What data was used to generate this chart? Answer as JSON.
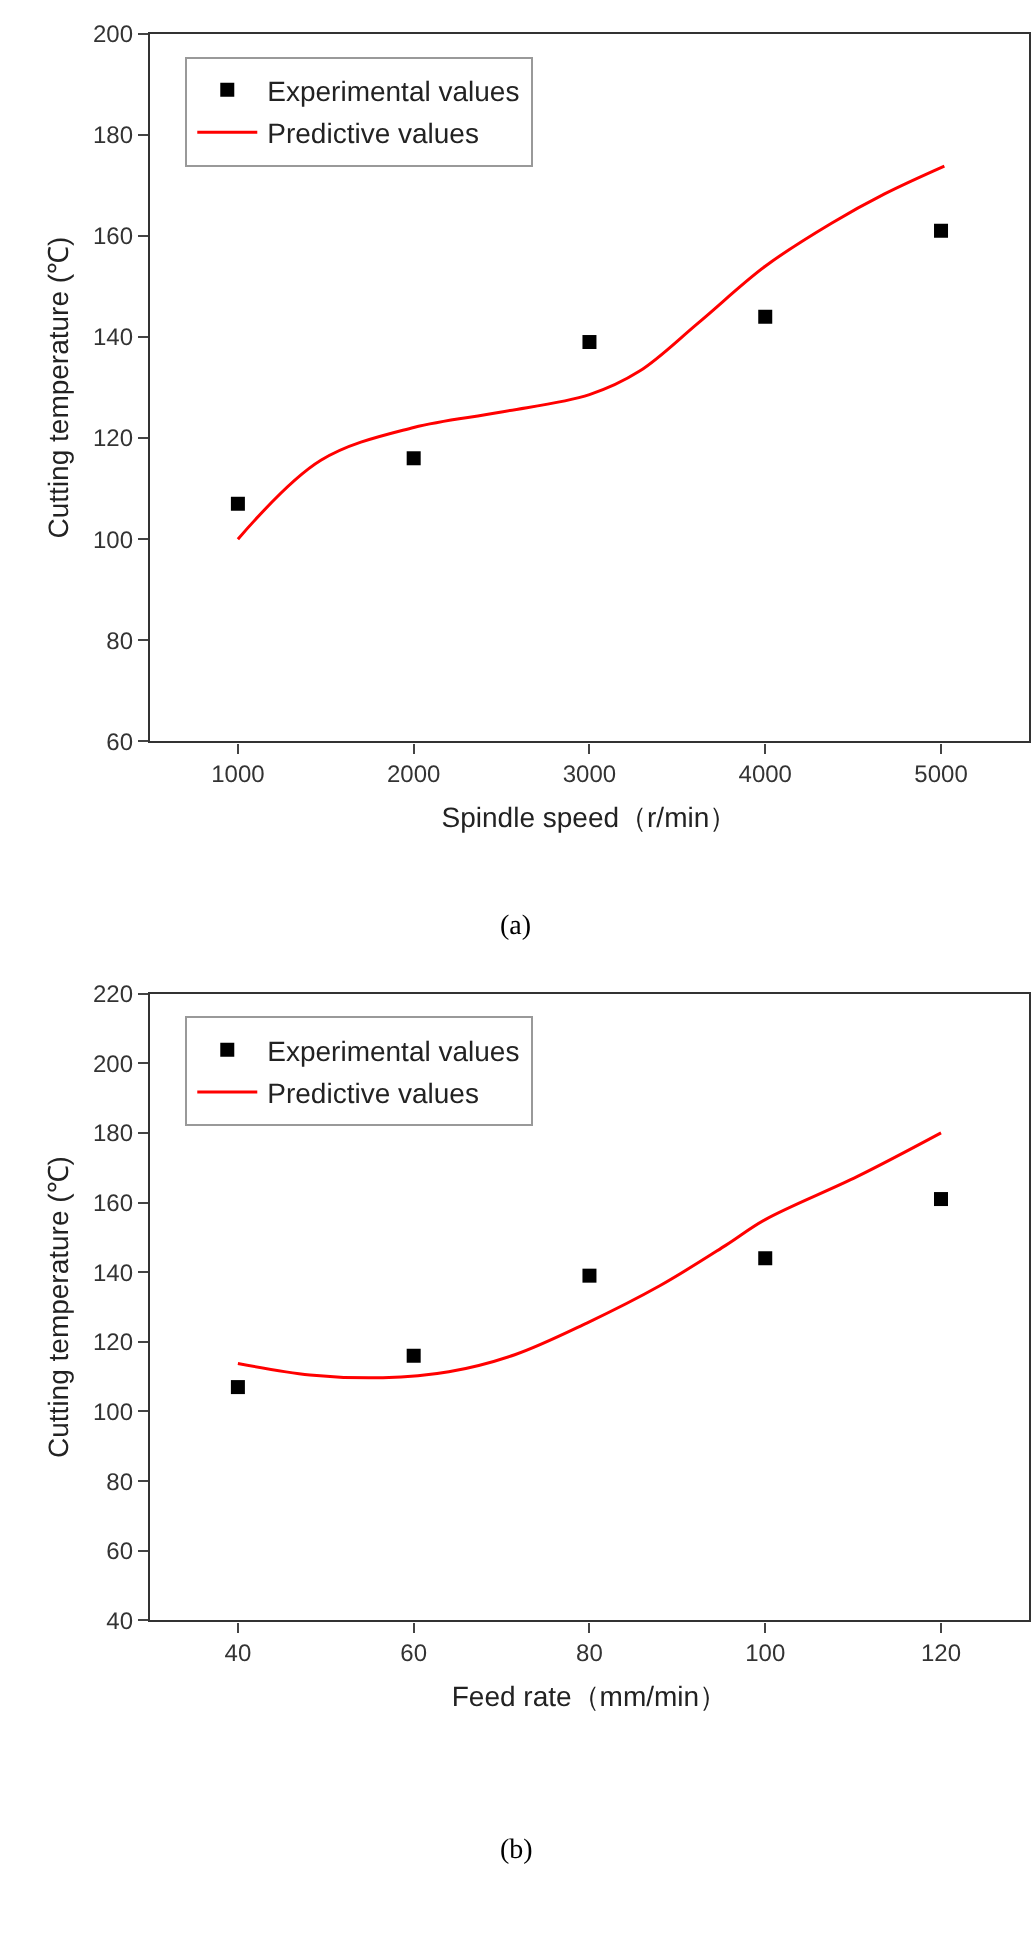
{
  "chart_data": [
    {
      "type": "scatter",
      "xlabel": "Spindle speed（r/min）",
      "ylabel": "Cutting temperature (℃)",
      "xlim": [
        500,
        5500
      ],
      "xticks": [
        1000,
        2000,
        3000,
        4000,
        5000
      ],
      "ylim": [
        60,
        200
      ],
      "yticks": [
        60,
        80,
        100,
        120,
        140,
        160,
        180,
        200
      ],
      "grid": false,
      "legend": "top left",
      "annotations": [
        "(a)"
      ],
      "series": [
        {
          "name": "Experimental values",
          "marker": "square",
          "color": "#000000",
          "x": [
            1000,
            2000,
            3000,
            4000,
            5000
          ],
          "values": [
            107,
            116,
            139,
            144,
            161
          ]
        },
        {
          "name": "Predictive values",
          "type": "line",
          "color": "#ff0000",
          "line_style": "solid",
          "x": [
            1000,
            1472,
            2000,
            2491,
            3000,
            3283,
            3623,
            4000,
            4377,
            4679,
            5019
          ],
          "values": [
            100,
            115.6,
            122.1,
            125.1,
            128.6,
            133.2,
            142.9,
            154,
            162.5,
            168.3,
            173.8
          ]
        }
      ]
    },
    {
      "type": "scatter",
      "xlabel": "Feed rate（mm/min）",
      "ylabel": "Cutting temperature (℃)",
      "xlim": [
        30,
        130
      ],
      "xticks": [
        40,
        60,
        80,
        100,
        120
      ],
      "ylim": [
        40,
        220
      ],
      "yticks": [
        40,
        60,
        80,
        100,
        120,
        140,
        160,
        180,
        200,
        220
      ],
      "grid": false,
      "legend": "top left",
      "annotations": [
        "(b)"
      ],
      "series": [
        {
          "name": "Experimental values",
          "marker": "square",
          "color": "#000000",
          "x": [
            40,
            60,
            80,
            100,
            120
          ],
          "values": [
            107,
            116,
            139,
            144,
            161
          ]
        },
        {
          "name": "Predictive values",
          "type": "line",
          "color": "#ff0000",
          "line_style": "solid",
          "x": [
            40,
            48.2,
            56.5,
            64,
            71.5,
            79.7,
            88,
            95.5,
            100,
            110.5,
            120
          ],
          "values": [
            113.8,
            110.5,
            109.7,
            111.4,
            116.3,
            125.4,
            136.1,
            147.7,
            155.1,
            167.5,
            180
          ]
        }
      ]
    }
  ]
}
